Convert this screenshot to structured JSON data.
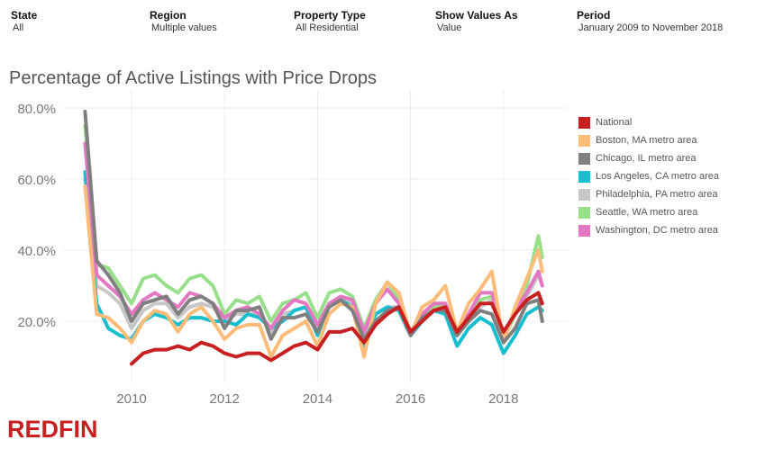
{
  "filters": [
    {
      "label": "State",
      "value": "All"
    },
    {
      "label": "Region",
      "value": "Multiple values"
    },
    {
      "label": "Property Type",
      "value": "All Residential"
    },
    {
      "label": "Show Values As",
      "value": "Value"
    },
    {
      "label": "Period",
      "value": "January 2009 to November 2018"
    }
  ],
  "logo": "REDFIN",
  "chart_data": {
    "type": "line",
    "title": "Percentage of Active Listings with Price Drops",
    "xlabel": "",
    "ylabel": "",
    "ylim": [
      0,
      85
    ],
    "xlim": [
      "2009-01",
      "2018-12"
    ],
    "yticks": [
      "20.0%",
      "40.0%",
      "60.0%",
      "80.0%"
    ],
    "ytick_values": [
      20,
      40,
      60,
      80
    ],
    "xticks": [
      "2010",
      "2012",
      "2014",
      "2016",
      "2018"
    ],
    "grid": true,
    "legend_placement": "right",
    "x": [
      "2009-01",
      "2009-04",
      "2009-07",
      "2009-10",
      "2010-01",
      "2010-04",
      "2010-07",
      "2010-10",
      "2011-01",
      "2011-04",
      "2011-07",
      "2011-10",
      "2012-01",
      "2012-04",
      "2012-07",
      "2012-10",
      "2013-01",
      "2013-04",
      "2013-07",
      "2013-10",
      "2014-01",
      "2014-04",
      "2014-07",
      "2014-10",
      "2015-01",
      "2015-04",
      "2015-07",
      "2015-10",
      "2016-01",
      "2016-04",
      "2016-07",
      "2016-10",
      "2017-01",
      "2017-04",
      "2017-07",
      "2017-10",
      "2018-01",
      "2018-04",
      "2018-07",
      "2018-10",
      "2018-11"
    ],
    "series": [
      {
        "name": "National",
        "color": "#c82021",
        "values": [
          null,
          null,
          null,
          null,
          8,
          11,
          12,
          12,
          13,
          12,
          14,
          13,
          11,
          10,
          11,
          11,
          9,
          11,
          13,
          14,
          12,
          17,
          17,
          18,
          14,
          19,
          22,
          24,
          17,
          20,
          23,
          24,
          17,
          21,
          25,
          25,
          17,
          22,
          26,
          28,
          25
        ]
      },
      {
        "name": "Boston, MA metro area",
        "color": "#ffbc79",
        "values": [
          58,
          22,
          21,
          18,
          14,
          20,
          23,
          22,
          17,
          22,
          24,
          20,
          15,
          18,
          19,
          19,
          10,
          16,
          18,
          20,
          13,
          22,
          25,
          24,
          10,
          25,
          31,
          28,
          16,
          24,
          26,
          30,
          17,
          25,
          29,
          34,
          14,
          24,
          32,
          40,
          34
        ]
      },
      {
        "name": "Chicago, IL metro area",
        "color": "#7f7f7f",
        "values": [
          79,
          37,
          33,
          28,
          20,
          25,
          26,
          27,
          22,
          26,
          27,
          25,
          18,
          23,
          23,
          24,
          15,
          21,
          21,
          22,
          17,
          24,
          26,
          23,
          15,
          20,
          23,
          24,
          16,
          21,
          23,
          23,
          16,
          20,
          23,
          22,
          14,
          18,
          25,
          26,
          20
        ]
      },
      {
        "name": "Los Angeles, CA metro area",
        "color": "#17becf",
        "values": [
          62,
          25,
          18,
          16,
          15,
          20,
          22,
          21,
          19,
          21,
          21,
          20,
          20,
          19,
          22,
          21,
          18,
          20,
          23,
          24,
          16,
          25,
          26,
          24,
          13,
          22,
          24,
          23,
          16,
          20,
          23,
          22,
          13,
          18,
          21,
          19,
          11,
          16,
          22,
          24,
          23
        ]
      },
      {
        "name": "Philadelphia, PA metro area",
        "color": "#c7c7c7",
        "values": [
          60,
          30,
          28,
          25,
          18,
          23,
          25,
          25,
          21,
          24,
          25,
          24,
          20,
          22,
          22,
          22,
          17,
          22,
          23,
          24,
          18,
          24,
          26,
          25,
          15,
          22,
          24,
          24,
          17,
          21,
          23,
          23,
          17,
          21,
          24,
          26,
          17,
          22,
          27,
          33,
          30
        ]
      },
      {
        "name": "Seattle, WA metro area",
        "color": "#98df8a",
        "values": [
          75,
          36,
          35,
          30,
          25,
          32,
          33,
          30,
          28,
          32,
          33,
          30,
          22,
          26,
          25,
          27,
          20,
          25,
          26,
          28,
          21,
          28,
          29,
          27,
          18,
          26,
          31,
          26,
          17,
          22,
          24,
          25,
          17,
          22,
          26,
          27,
          15,
          22,
          30,
          44,
          38
        ]
      },
      {
        "name": "Washington, DC metro area",
        "color": "#e377c2",
        "values": [
          70,
          33,
          30,
          27,
          22,
          26,
          28,
          26,
          24,
          28,
          27,
          25,
          21,
          23,
          24,
          22,
          18,
          23,
          26,
          25,
          19,
          25,
          27,
          26,
          17,
          25,
          29,
          25,
          17,
          22,
          25,
          25,
          17,
          22,
          28,
          28,
          16,
          23,
          28,
          34,
          30
        ]
      }
    ]
  }
}
